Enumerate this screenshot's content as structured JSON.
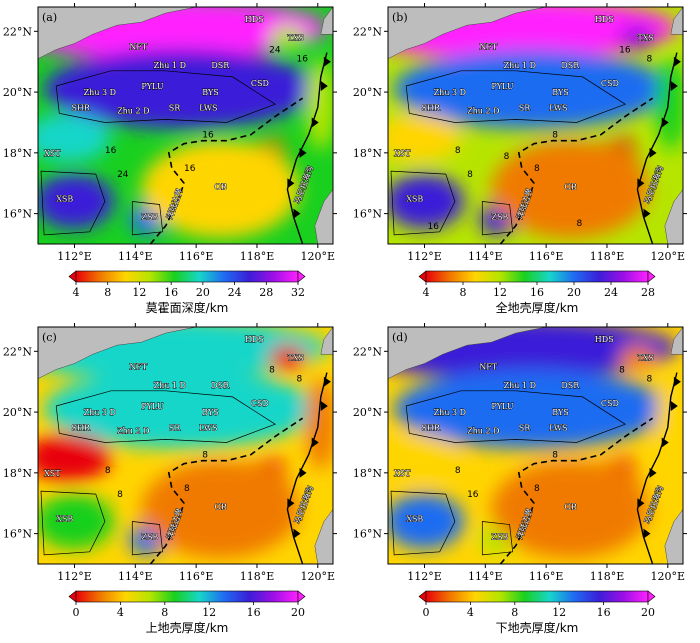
{
  "panels": [
    {
      "letter": "(a)",
      "colorbar": {
        "title": "莫霍面深度/km",
        "ticks": [
          "4",
          "8",
          "12",
          "16",
          "20",
          "24",
          "28",
          "32"
        ],
        "min": 4,
        "max": 32
      },
      "contour_labels": [
        "24",
        "16",
        "16",
        "16",
        "24",
        "16"
      ],
      "features": [
        "NFT",
        "Zhu 1 D",
        "PYLU",
        "DSR",
        "CSD",
        "Zhu 3 D",
        "Zhu 2 D",
        "SHR",
        "SR",
        "LWS",
        "BYS",
        "TXS",
        "HDS",
        "XST",
        "XSB",
        "ZSB",
        "OB",
        "洋陆边界",
        "马尼拉海沟"
      ]
    },
    {
      "letter": "(b)",
      "colorbar": {
        "title": "全地壳厚度/km",
        "ticks": [
          "4",
          "8",
          "12",
          "16",
          "20",
          "24",
          "28"
        ],
        "min": 4,
        "max": 28
      },
      "contour_labels": [
        "8",
        "8",
        "8",
        "8",
        "16",
        "8",
        "16",
        "8",
        "8"
      ],
      "features": [
        "NFT",
        "Zhu 1 D",
        "PYLU",
        "DSR",
        "CSD",
        "Zhu 3 D",
        "Zhu 2 D",
        "SHR",
        "SR",
        "LWS",
        "BYS",
        "TXS",
        "HDS",
        "XST",
        "XSB",
        "ZSB",
        "OB",
        "洋陆边界",
        "马尼拉海沟"
      ]
    },
    {
      "letter": "(c)",
      "colorbar": {
        "title": "上地壳厚度/km",
        "ticks": [
          "0",
          "4",
          "8",
          "12",
          "16",
          "20"
        ],
        "min": 0,
        "max": 20
      },
      "contour_labels": [
        "8",
        "8",
        "8",
        "8",
        "8",
        "8"
      ],
      "features": [
        "NFT",
        "Zhu 1 D",
        "PYLU",
        "DSR",
        "CSD",
        "Zhu 3 D",
        "Zhu 2 D",
        "SHR",
        "SR",
        "LWS",
        "BYS",
        "TXS",
        "HDS",
        "XST",
        "XSB",
        "ZSB",
        "OB",
        "洋陆边界",
        "马尼拉海沟"
      ]
    },
    {
      "letter": "(d)",
      "colorbar": {
        "title": "下地壳厚度/km",
        "ticks": [
          "0",
          "4",
          "8",
          "12",
          "16",
          "20"
        ],
        "min": 0,
        "max": 20
      },
      "contour_labels": [
        "16",
        "8",
        "8",
        "8",
        "8",
        "8"
      ],
      "features": [
        "NFT",
        "Zhu 1 D",
        "PYLU",
        "DSR",
        "CSD",
        "Zhu 3 D",
        "Zhu 2 D",
        "SHR",
        "SR",
        "LWS",
        "BYS",
        "TXS",
        "HDS",
        "XST",
        "XSB",
        "ZSB",
        "OB",
        "洋陆边界",
        "马尼拉海沟"
      ]
    }
  ],
  "axes": {
    "lon_ticks": [
      "112°E",
      "114°E",
      "116°E",
      "118°E",
      "120°E"
    ],
    "lat_ticks": [
      "22°N",
      "20°N",
      "18°N",
      "16°N"
    ],
    "lon_range": [
      110.8,
      120.5
    ],
    "lat_range": [
      15.0,
      22.8
    ]
  },
  "colors": {
    "land": "#bdbdbd",
    "coast": "#000000",
    "colormap": [
      "#e8000b",
      "#f07a00",
      "#ffd500",
      "#b6e500",
      "#19d01f",
      "#17d6c9",
      "#1f6cf2",
      "#3a1fd8",
      "#9b0fe6",
      "#ff20ff"
    ]
  }
}
